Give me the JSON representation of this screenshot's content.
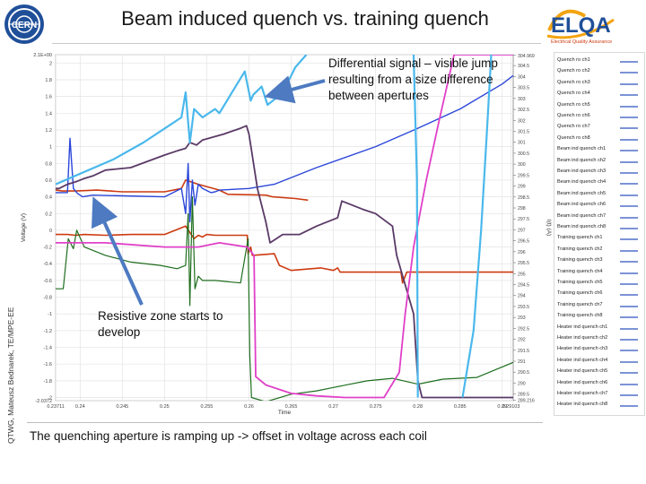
{
  "slide": {
    "title": "Beam induced quench vs. training quench",
    "side_label": "QTWG, Mateusz Bednarek, TE/MPE-EE",
    "annotation_top": "Differential signal – visible jump resulting from a size difference between apertures",
    "annotation_bottom": "Resistive zone starts to develop",
    "caption": "The quenching aperture is ramping up -> offset in voltage across each coil"
  },
  "logos": {
    "left": "cern-logo",
    "right_text": "ELQA",
    "right_sub": "Electrical Quality Assurance"
  },
  "colors": {
    "training": "#cc3a10",
    "beam": "#2b46d9",
    "heater": "#1e6e1e",
    "purple": "#5a3a66",
    "magenta": "#e040c8",
    "cyan": "#4ab8ec",
    "legend_swatch": "#7c93d6",
    "arrow": "#4d7ac1"
  },
  "legend": [
    "Quench ro ch1",
    "Quench ro ch2",
    "Quench ro ch3",
    "Quench ro ch4",
    "Quench ro ch5",
    "Quench ro ch6",
    "Quench ro ch7",
    "Quench ro ch8",
    "Beam ind quench ch1",
    "Beam ind quench ch2",
    "Beam ind quench ch3",
    "Beam ind quench ch4",
    "Beam ind quench ch5",
    "Beam ind quench ch6",
    "Beam ind quench ch7",
    "Beam ind quench ch8",
    "Training quench ch1",
    "Training quench ch2",
    "Training quench ch3",
    "Training quench ch4",
    "Training quench ch5",
    "Training quench ch6",
    "Training quench ch7",
    "Training quench ch8",
    "Heater ind quench ch1",
    "Heater ind quench ch2",
    "Heater ind quench ch3",
    "Heater ind quench ch4",
    "Heater ind quench ch5",
    "Heater ind quench ch6",
    "Heater ind quench ch7",
    "Heater ind quench ch8"
  ],
  "chart_data": {
    "type": "line",
    "xlabel": "Time",
    "ylabel": "Voltage (V)",
    "ylabel_right": "I(t) (A)",
    "xlim": [
      0.2371,
      0.2913
    ],
    "ylim": [
      -2.0372,
      2.1
    ],
    "ylim_right": [
      289.2,
      305
    ],
    "x_ticks": [
      "0.23711",
      "0.24",
      "0.245",
      "0.25",
      "0.255",
      "0.26",
      "0.265",
      "0.27",
      "0.275",
      "0.28",
      "0.285",
      "0.29",
      "0.29103"
    ],
    "y_ticks": [
      "2.1E+00",
      "2",
      "1.8",
      "1.6",
      "1.4",
      "1.2",
      "1",
      "0.8",
      "0.6",
      "0.4",
      "0.2",
      "0",
      "-0.2",
      "-0.4",
      "-0.6",
      "-0.8",
      "-1",
      "-1.2",
      "-1.4",
      "-1.6",
      "-1.8",
      "-2",
      "-2.0372"
    ],
    "y_ticks_right": [
      "304.969",
      "304.5",
      "304",
      "303.5",
      "303",
      "302.5",
      "302",
      "301.5",
      "301",
      "300.5",
      "300",
      "299.5",
      "299",
      "298.5",
      "298",
      "297.5",
      "297",
      "296.5",
      "296",
      "295.5",
      "295",
      "294.5",
      "294",
      "293.5",
      "293",
      "292.5",
      "292",
      "291.5",
      "291",
      "290.5",
      "290",
      "289.5",
      "289.216"
    ],
    "grid": true,
    "series": [
      {
        "x": [
          0.2371,
          0.2379,
          0.2395,
          0.242,
          0.245,
          0.25,
          0.252,
          0.2525,
          0.254,
          0.2565,
          0.2575,
          0.262,
          0.2628,
          0.2655,
          0.267
        ],
        "y": [
          0.48,
          0.47,
          0.47,
          0.48,
          0.46,
          0.46,
          0.5,
          0.6,
          0.55,
          0.48,
          0.43,
          0.42,
          0.4,
          0.38,
          0.36
        ]
      },
      {
        "x": [
          0.2371,
          0.2385,
          0.2388,
          0.2392,
          0.2397,
          0.2403,
          0.2415,
          0.25,
          0.252,
          0.2525,
          0.2528,
          0.253,
          0.2533,
          0.2536,
          0.254,
          0.2545,
          0.2555,
          0.256,
          0.2565,
          0.26,
          0.263,
          0.268,
          0.275,
          0.28,
          0.285,
          0.29,
          0.2913
        ],
        "y": [
          0.45,
          0.45,
          1.1,
          0.5,
          0.44,
          0.4,
          0.42,
          0.4,
          0.5,
          0.2,
          0.8,
          0.1,
          0.6,
          0.3,
          0.55,
          0.5,
          0.45,
          0.46,
          0.48,
          0.5,
          0.55,
          0.75,
          1.0,
          1.22,
          1.45,
          1.75,
          1.85
        ]
      },
      {
        "x": [
          0.2371,
          0.2385,
          0.2395,
          0.2405,
          0.243,
          0.246,
          0.25,
          0.2525,
          0.2535,
          0.254,
          0.2545,
          0.255,
          0.256,
          0.258,
          0.2598,
          0.2599,
          0.2602,
          0.2604,
          0.263,
          0.2636,
          0.265,
          0.2685,
          0.27,
          0.2705,
          0.2708,
          0.278,
          0.2782,
          0.2787,
          0.2913
        ],
        "y": [
          -0.05,
          -0.05,
          -0.06,
          -0.05,
          -0.06,
          -0.05,
          -0.05,
          0.05,
          -0.1,
          -0.06,
          -0.08,
          -0.05,
          -0.06,
          -0.06,
          -0.06,
          -0.28,
          -0.2,
          -0.3,
          -0.28,
          -0.42,
          -0.48,
          -0.45,
          -0.48,
          -0.45,
          -0.5,
          -0.5,
          -0.63,
          -0.5,
          -0.5
        ]
      },
      {
        "x": [
          0.2371,
          0.238,
          0.2386,
          0.2392,
          0.2396,
          0.2405,
          0.243,
          0.246,
          0.2495,
          0.2515,
          0.2525,
          0.2528,
          0.253,
          0.2533,
          0.2536,
          0.254,
          0.2545,
          0.256,
          0.259,
          0.2599,
          0.2601,
          0.2603,
          0.262,
          0.265,
          0.268,
          0.27,
          0.274,
          0.277,
          0.28,
          0.283,
          0.287,
          0.2913
        ],
        "y": [
          -0.7,
          -0.7,
          -0.1,
          -0.22,
          0,
          -0.2,
          -0.3,
          -0.38,
          -0.42,
          -0.46,
          -0.42,
          0.2,
          -0.9,
          0.4,
          -0.7,
          -0.55,
          -0.6,
          -0.6,
          -0.63,
          -0.1,
          -1.5,
          -2.0,
          -2.05,
          -1.96,
          -1.92,
          -1.88,
          -1.8,
          -1.77,
          -1.84,
          -1.78,
          -1.76,
          -1.58
        ]
      },
      {
        "x": [
          0.2371,
          0.2375,
          0.2385,
          0.2395,
          0.2405,
          0.2415,
          0.243,
          0.246,
          0.25,
          0.2515,
          0.2525,
          0.253,
          0.2538,
          0.2545,
          0.257,
          0.259,
          0.2597,
          0.26,
          0.261,
          0.262,
          0.2625,
          0.264,
          0.266,
          0.268,
          0.2705,
          0.271,
          0.2735,
          0.275,
          0.277,
          0.2775,
          0.2795,
          0.28,
          0.2805,
          0.2913
        ],
        "y": [
          0.5,
          0.5,
          0.55,
          0.58,
          0.62,
          0.65,
          0.72,
          0.75,
          0.9,
          0.95,
          0.98,
          1.05,
          1.02,
          1.08,
          1.15,
          1.22,
          1.25,
          1.15,
          0.5,
          0.1,
          -0.15,
          -0.05,
          -0.05,
          0.05,
          0.15,
          0.35,
          0.25,
          0.2,
          0.05,
          -0.3,
          -1.0,
          -1.8,
          -2.0,
          -2.0
        ]
      },
      {
        "x": [
          0.2371,
          0.243,
          0.25,
          0.254,
          0.2565,
          0.2598,
          0.2606,
          0.2608,
          0.262,
          0.265,
          0.268,
          0.2713,
          0.276,
          0.2778,
          0.2785,
          0.2795,
          0.281,
          0.2825,
          0.2843,
          0.2913
        ],
        "y": [
          -0.15,
          -0.15,
          -0.2,
          -0.2,
          -0.15,
          -0.2,
          -0.3,
          -1.75,
          -1.85,
          -1.95,
          -1.98,
          -2.0,
          -2.0,
          -1.7,
          -1.0,
          -0.2,
          0.6,
          1.3,
          2.1,
          2.1
        ]
      },
      {
        "x": [
          0.2371,
          0.244,
          0.2475,
          0.2505,
          0.252,
          0.2525,
          0.253,
          0.2535,
          0.2545,
          0.256,
          0.2565,
          0.2595,
          0.2602,
          0.2605,
          0.2615,
          0.2622,
          0.2632,
          0.2645,
          0.2655,
          0.2668
        ],
        "y": [
          0.55,
          0.85,
          1.05,
          1.25,
          1.35,
          1.65,
          1.05,
          1.45,
          1.35,
          1.45,
          1.4,
          1.9,
          1.55,
          1.62,
          1.72,
          1.5,
          1.58,
          1.75,
          1.95,
          2.1
        ]
      },
      {
        "x": [
          0.2795,
          0.2799,
          0.28
        ],
        "y": [
          2.1,
          0.6,
          -2.0
        ]
      },
      {
        "x": [
          0.2853,
          0.2866,
          0.2875,
          0.2882,
          0.2887
        ],
        "y": [
          -2.0,
          -1.2,
          0.0,
          1.2,
          2.1
        ]
      }
    ]
  }
}
